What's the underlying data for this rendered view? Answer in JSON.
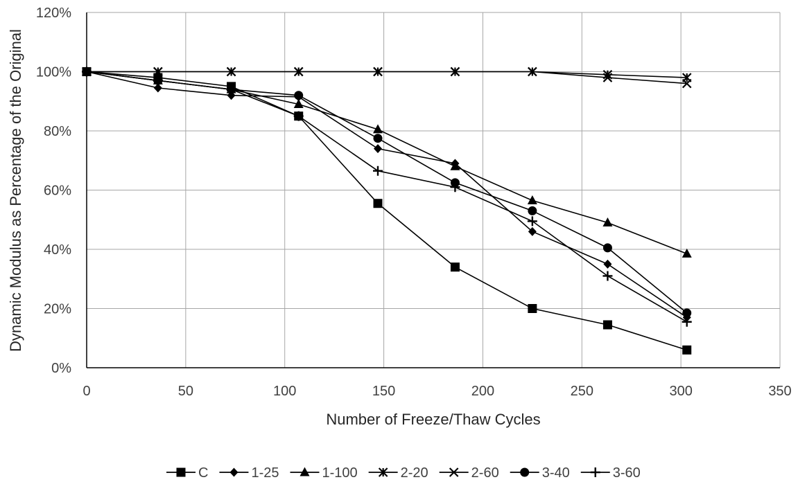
{
  "chart_data": {
    "type": "line",
    "title": "",
    "xlabel": "Number of Freeze/Thaw Cycles",
    "ylabel": "Dynamic Modulus as Percentage of the Original",
    "xlim": [
      0,
      350
    ],
    "ylim": [
      0,
      120
    ],
    "x_ticks": [
      "0",
      "50",
      "100",
      "150",
      "200",
      "250",
      "300",
      "350"
    ],
    "y_ticks": [
      "0%",
      "20%",
      "40%",
      "60%",
      "80%",
      "100%",
      "120%"
    ],
    "grid": true,
    "legend_position": "bottom",
    "line_color": "#000000",
    "series": [
      {
        "name": "C",
        "marker": "square",
        "x": [
          0,
          36,
          73,
          107,
          147,
          186,
          225,
          263,
          303
        ],
        "y": [
          100,
          98,
          95,
          85,
          55.5,
          34,
          20,
          14.5,
          6
        ]
      },
      {
        "name": "1-25",
        "marker": "diamond",
        "x": [
          0,
          36,
          73,
          107,
          147,
          186,
          225,
          263,
          303
        ],
        "y": [
          100,
          94.5,
          92,
          91.5,
          74,
          69,
          46,
          35,
          17
        ]
      },
      {
        "name": "1-100",
        "marker": "triangle",
        "x": [
          0,
          36,
          73,
          107,
          147,
          186,
          225,
          263,
          303
        ],
        "y": [
          100,
          97,
          94,
          89,
          80.5,
          68,
          56.5,
          49,
          38.5
        ]
      },
      {
        "name": "2-20",
        "marker": "x-star",
        "x": [
          0,
          36,
          73,
          107,
          147,
          186,
          225,
          263,
          303
        ],
        "y": [
          100,
          100,
          100,
          100,
          100,
          100,
          100,
          99,
          98
        ]
      },
      {
        "name": "2-60",
        "marker": "x",
        "x": [
          0,
          36,
          73,
          107,
          147,
          186,
          225,
          263,
          303
        ],
        "y": [
          100,
          100,
          100,
          100,
          100,
          100,
          100,
          98,
          96
        ]
      },
      {
        "name": "3-40",
        "marker": "circle",
        "x": [
          0,
          36,
          73,
          107,
          147,
          186,
          225,
          263,
          303
        ],
        "y": [
          100,
          97,
          94,
          92,
          77.5,
          62.5,
          53,
          40.5,
          18.5
        ]
      },
      {
        "name": "3-60",
        "marker": "plus",
        "x": [
          0,
          36,
          73,
          107,
          147,
          186,
          225,
          263,
          303
        ],
        "y": [
          100,
          97,
          94,
          85,
          66.5,
          61,
          49.5,
          31,
          15.5
        ]
      }
    ]
  }
}
